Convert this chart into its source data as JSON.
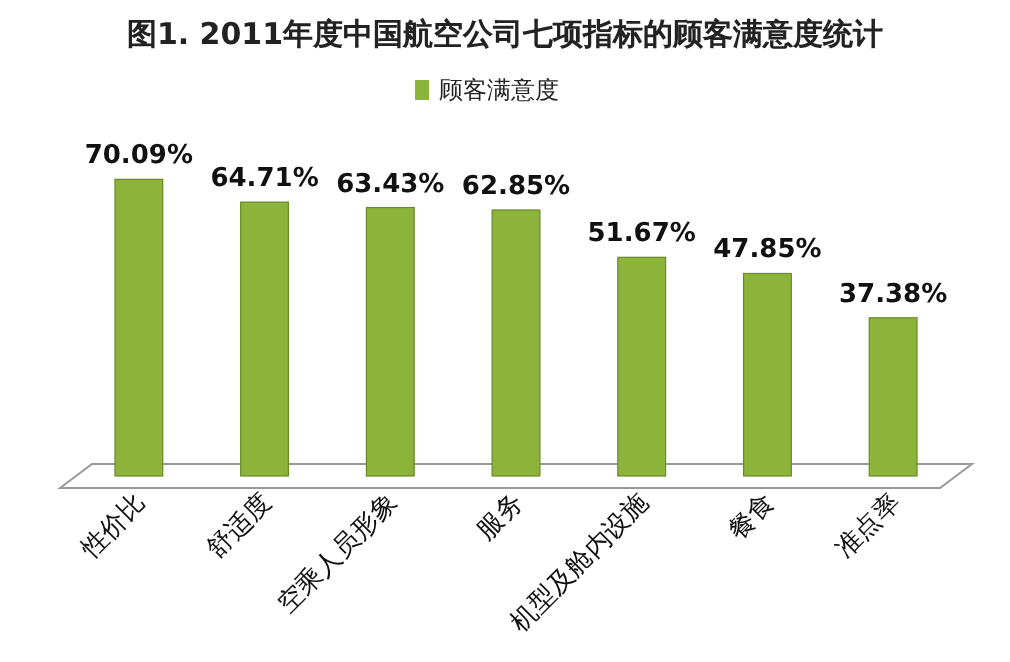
{
  "chart_data": {
    "type": "bar",
    "title": "图1. 2011年度中国航空公司七项指标的顾客满意度统计",
    "categories": [
      "性价比",
      "舒适度",
      "空乘人员形象",
      "服务",
      "机型及舱内设施",
      "餐食",
      "准点率"
    ],
    "series": [
      {
        "name": "顾客满意度",
        "color": "#8db43a",
        "values": [
          70.09,
          64.71,
          63.43,
          62.85,
          51.67,
          47.85,
          37.38
        ],
        "value_labels": [
          "70.09%",
          "64.71%",
          "63.43%",
          "62.85%",
          "51.67%",
          "47.85%",
          "37.38%"
        ]
      }
    ],
    "legend": "top"
  }
}
